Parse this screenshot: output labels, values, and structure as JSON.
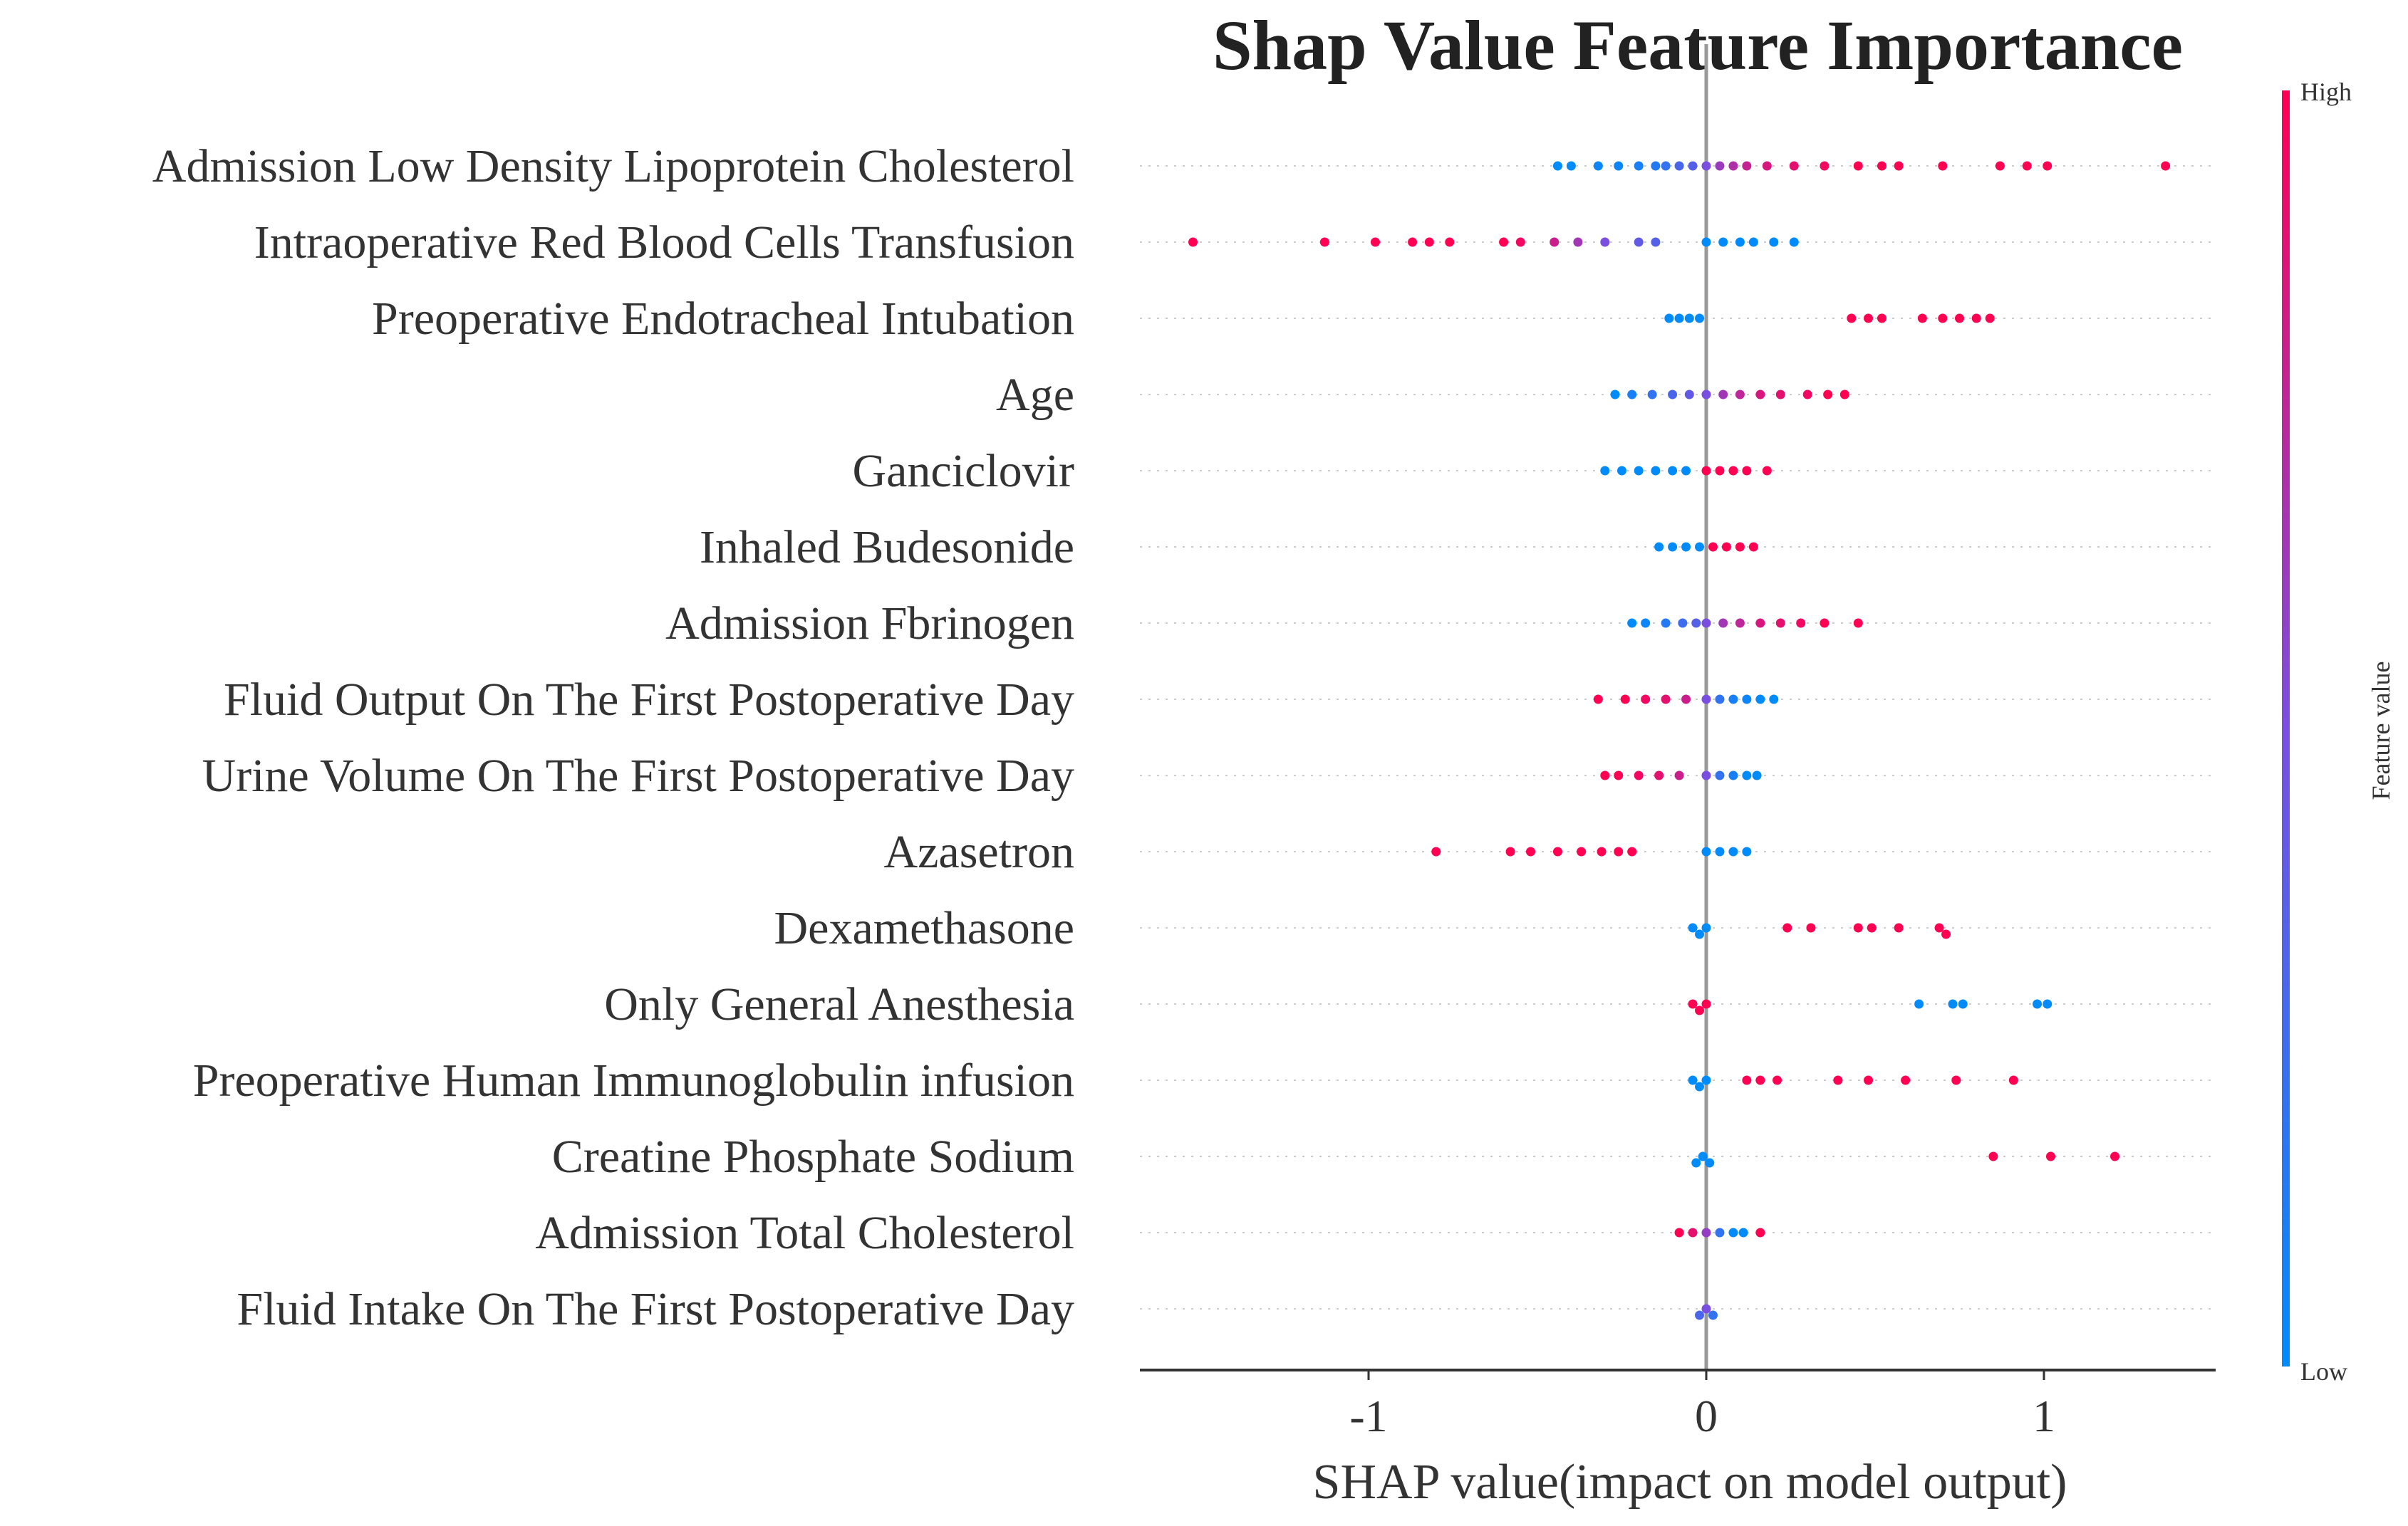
{
  "title": "Shap Value Feature Importance",
  "chart_data": {
    "type": "scatter",
    "subtype": "shap-beeswarm",
    "title": "Shap Value Feature Importance",
    "xlabel": "SHAP value(impact on model output)",
    "xlim": [
      -1.68,
      1.5
    ],
    "xticks": [
      -1,
      0,
      1
    ],
    "xtick_labels": [
      "-1",
      "0",
      "1"
    ],
    "grid": false,
    "colorbar": {
      "label": "Feature value",
      "high_label": "High",
      "low_label": "Low",
      "high_color": "#ff0052",
      "low_color": "#008bfb"
    },
    "features": [
      {
        "name": "Admission Low Density Lipoprotein Cholesterol",
        "points": [
          {
            "x": -0.44,
            "v": 0.0
          },
          {
            "x": -0.4,
            "v": 0.0
          },
          {
            "x": -0.32,
            "v": 0.05
          },
          {
            "x": -0.26,
            "v": 0.05
          },
          {
            "x": -0.2,
            "v": 0.1
          },
          {
            "x": -0.15,
            "v": 0.15
          },
          {
            "x": -0.12,
            "v": 0.2
          },
          {
            "x": -0.08,
            "v": 0.3
          },
          {
            "x": -0.04,
            "v": 0.35
          },
          {
            "x": 0.0,
            "v": 0.5
          },
          {
            "x": 0.04,
            "v": 0.62
          },
          {
            "x": 0.08,
            "v": 0.7
          },
          {
            "x": 0.12,
            "v": 0.78
          },
          {
            "x": 0.18,
            "v": 0.85
          },
          {
            "x": 0.26,
            "v": 0.9
          },
          {
            "x": 0.35,
            "v": 0.95
          },
          {
            "x": 0.45,
            "v": 1.0
          },
          {
            "x": 0.52,
            "v": 1.0
          },
          {
            "x": 0.57,
            "v": 1.0
          },
          {
            "x": 0.7,
            "v": 1.0
          },
          {
            "x": 0.87,
            "v": 1.0
          },
          {
            "x": 0.95,
            "v": 1.0
          },
          {
            "x": 1.01,
            "v": 1.0
          },
          {
            "x": 1.36,
            "v": 1.0
          }
        ]
      },
      {
        "name": "Intraoperative Red Blood Cells Transfusion",
        "points": [
          {
            "x": -1.52,
            "v": 1.0
          },
          {
            "x": -1.13,
            "v": 1.0
          },
          {
            "x": -0.98,
            "v": 1.0
          },
          {
            "x": -0.87,
            "v": 1.0
          },
          {
            "x": -0.82,
            "v": 1.0
          },
          {
            "x": -0.76,
            "v": 1.0
          },
          {
            "x": -0.6,
            "v": 1.0
          },
          {
            "x": -0.55,
            "v": 0.95
          },
          {
            "x": -0.45,
            "v": 0.8
          },
          {
            "x": -0.38,
            "v": 0.65
          },
          {
            "x": -0.3,
            "v": 0.5
          },
          {
            "x": -0.2,
            "v": 0.4
          },
          {
            "x": -0.15,
            "v": 0.35
          },
          {
            "x": 0.0,
            "v": 0.0
          },
          {
            "x": 0.05,
            "v": 0.0
          },
          {
            "x": 0.1,
            "v": 0.0
          },
          {
            "x": 0.14,
            "v": 0.0
          },
          {
            "x": 0.2,
            "v": 0.0
          },
          {
            "x": 0.26,
            "v": 0.0
          }
        ]
      },
      {
        "name": "Preoperative Endotracheal Intubation",
        "points": [
          {
            "x": -0.11,
            "v": 0.0
          },
          {
            "x": -0.08,
            "v": 0.0
          },
          {
            "x": -0.05,
            "v": 0.0
          },
          {
            "x": -0.02,
            "v": 0.0
          },
          {
            "x": 0.43,
            "v": 1.0
          },
          {
            "x": 0.48,
            "v": 1.0
          },
          {
            "x": 0.52,
            "v": 1.0
          },
          {
            "x": 0.64,
            "v": 1.0
          },
          {
            "x": 0.7,
            "v": 1.0
          },
          {
            "x": 0.75,
            "v": 1.0
          },
          {
            "x": 0.8,
            "v": 1.0
          },
          {
            "x": 0.84,
            "v": 1.0
          }
        ]
      },
      {
        "name": "Age",
        "points": [
          {
            "x": -0.27,
            "v": 0.0
          },
          {
            "x": -0.22,
            "v": 0.1
          },
          {
            "x": -0.16,
            "v": 0.2
          },
          {
            "x": -0.1,
            "v": 0.3
          },
          {
            "x": -0.05,
            "v": 0.4
          },
          {
            "x": 0.0,
            "v": 0.5
          },
          {
            "x": 0.05,
            "v": 0.65
          },
          {
            "x": 0.1,
            "v": 0.75
          },
          {
            "x": 0.16,
            "v": 0.85
          },
          {
            "x": 0.22,
            "v": 0.9
          },
          {
            "x": 0.3,
            "v": 0.95
          },
          {
            "x": 0.36,
            "v": 1.0
          },
          {
            "x": 0.41,
            "v": 1.0
          }
        ]
      },
      {
        "name": "Ganciclovir",
        "points": [
          {
            "x": -0.3,
            "v": 0.0
          },
          {
            "x": -0.25,
            "v": 0.0
          },
          {
            "x": -0.2,
            "v": 0.0
          },
          {
            "x": -0.15,
            "v": 0.0
          },
          {
            "x": -0.1,
            "v": 0.0
          },
          {
            "x": -0.06,
            "v": 0.0
          },
          {
            "x": 0.0,
            "v": 1.0
          },
          {
            "x": 0.04,
            "v": 1.0
          },
          {
            "x": 0.08,
            "v": 1.0
          },
          {
            "x": 0.12,
            "v": 1.0
          },
          {
            "x": 0.18,
            "v": 1.0
          }
        ]
      },
      {
        "name": "Inhaled Budesonide",
        "points": [
          {
            "x": -0.14,
            "v": 0.0
          },
          {
            "x": -0.1,
            "v": 0.0
          },
          {
            "x": -0.06,
            "v": 0.0
          },
          {
            "x": -0.02,
            "v": 0.0
          },
          {
            "x": 0.02,
            "v": 1.0
          },
          {
            "x": 0.06,
            "v": 1.0
          },
          {
            "x": 0.1,
            "v": 1.0
          },
          {
            "x": 0.14,
            "v": 1.0
          }
        ]
      },
      {
        "name": "Admission Fbrinogen",
        "points": [
          {
            "x": -0.22,
            "v": 0.0
          },
          {
            "x": -0.18,
            "v": 0.05
          },
          {
            "x": -0.12,
            "v": 0.15
          },
          {
            "x": -0.07,
            "v": 0.25
          },
          {
            "x": -0.03,
            "v": 0.35
          },
          {
            "x": 0.0,
            "v": 0.5
          },
          {
            "x": 0.05,
            "v": 0.65
          },
          {
            "x": 0.1,
            "v": 0.75
          },
          {
            "x": 0.16,
            "v": 0.85
          },
          {
            "x": 0.22,
            "v": 0.9
          },
          {
            "x": 0.28,
            "v": 0.95
          },
          {
            "x": 0.35,
            "v": 1.0
          },
          {
            "x": 0.45,
            "v": 1.0
          }
        ]
      },
      {
        "name": "Fluid Output On The First Postoperative Day",
        "points": [
          {
            "x": -0.32,
            "v": 1.0
          },
          {
            "x": -0.24,
            "v": 1.0
          },
          {
            "x": -0.18,
            "v": 0.95
          },
          {
            "x": -0.12,
            "v": 0.9
          },
          {
            "x": -0.06,
            "v": 0.8
          },
          {
            "x": 0.0,
            "v": 0.5
          },
          {
            "x": 0.04,
            "v": 0.2
          },
          {
            "x": 0.08,
            "v": 0.1
          },
          {
            "x": 0.12,
            "v": 0.05
          },
          {
            "x": 0.16,
            "v": 0.0
          },
          {
            "x": 0.2,
            "v": 0.0
          }
        ]
      },
      {
        "name": "Urine Volume On The First Postoperative Day",
        "points": [
          {
            "x": -0.3,
            "v": 1.0
          },
          {
            "x": -0.26,
            "v": 1.0
          },
          {
            "x": -0.2,
            "v": 0.95
          },
          {
            "x": -0.14,
            "v": 0.9
          },
          {
            "x": -0.08,
            "v": 0.8
          },
          {
            "x": 0.0,
            "v": 0.5
          },
          {
            "x": 0.04,
            "v": 0.2
          },
          {
            "x": 0.08,
            "v": 0.1
          },
          {
            "x": 0.12,
            "v": 0.0
          },
          {
            "x": 0.15,
            "v": 0.0
          }
        ]
      },
      {
        "name": "Azasetron",
        "points": [
          {
            "x": -0.8,
            "v": 1.0
          },
          {
            "x": -0.58,
            "v": 1.0
          },
          {
            "x": -0.52,
            "v": 1.0
          },
          {
            "x": -0.44,
            "v": 1.0
          },
          {
            "x": -0.37,
            "v": 1.0
          },
          {
            "x": -0.31,
            "v": 1.0
          },
          {
            "x": -0.26,
            "v": 1.0
          },
          {
            "x": -0.22,
            "v": 1.0
          },
          {
            "x": 0.0,
            "v": 0.0
          },
          {
            "x": 0.04,
            "v": 0.0
          },
          {
            "x": 0.08,
            "v": 0.0
          },
          {
            "x": 0.12,
            "v": 0.0
          }
        ]
      },
      {
        "name": "Dexamethasone",
        "points": [
          {
            "x": -0.04,
            "v": 0.0
          },
          {
            "x": -0.02,
            "v": 0.0
          },
          {
            "x": 0.0,
            "v": 0.0
          },
          {
            "x": 0.24,
            "v": 1.0
          },
          {
            "x": 0.31,
            "v": 1.0
          },
          {
            "x": 0.45,
            "v": 1.0
          },
          {
            "x": 0.49,
            "v": 1.0
          },
          {
            "x": 0.57,
            "v": 1.0
          },
          {
            "x": 0.69,
            "v": 1.0
          },
          {
            "x": 0.71,
            "v": 1.0
          }
        ]
      },
      {
        "name": "Only General Anesthesia",
        "points": [
          {
            "x": -0.04,
            "v": 1.0
          },
          {
            "x": -0.02,
            "v": 1.0
          },
          {
            "x": 0.0,
            "v": 1.0
          },
          {
            "x": 0.63,
            "v": 0.0
          },
          {
            "x": 0.73,
            "v": 0.0
          },
          {
            "x": 0.76,
            "v": 0.0
          },
          {
            "x": 0.98,
            "v": 0.0
          },
          {
            "x": 1.01,
            "v": 0.0
          }
        ]
      },
      {
        "name": "Preoperative Human Immunoglobulin infusion",
        "points": [
          {
            "x": -0.04,
            "v": 0.0
          },
          {
            "x": -0.02,
            "v": 0.0
          },
          {
            "x": 0.0,
            "v": 0.0
          },
          {
            "x": 0.12,
            "v": 1.0
          },
          {
            "x": 0.16,
            "v": 1.0
          },
          {
            "x": 0.21,
            "v": 1.0
          },
          {
            "x": 0.39,
            "v": 1.0
          },
          {
            "x": 0.48,
            "v": 1.0
          },
          {
            "x": 0.59,
            "v": 1.0
          },
          {
            "x": 0.74,
            "v": 1.0
          },
          {
            "x": 0.91,
            "v": 1.0
          }
        ]
      },
      {
        "name": "Creatine Phosphate Sodium",
        "points": [
          {
            "x": -0.03,
            "v": 0.0
          },
          {
            "x": -0.01,
            "v": 0.0
          },
          {
            "x": 0.01,
            "v": 0.0
          },
          {
            "x": 0.85,
            "v": 1.0
          },
          {
            "x": 1.02,
            "v": 1.0
          },
          {
            "x": 1.21,
            "v": 1.0
          }
        ]
      },
      {
        "name": "Admission Total Cholesterol",
        "points": [
          {
            "x": -0.08,
            "v": 1.0
          },
          {
            "x": -0.04,
            "v": 0.9
          },
          {
            "x": 0.0,
            "v": 0.6
          },
          {
            "x": 0.04,
            "v": 0.2
          },
          {
            "x": 0.08,
            "v": 0.0
          },
          {
            "x": 0.11,
            "v": 0.0
          },
          {
            "x": 0.16,
            "v": 1.0
          }
        ]
      },
      {
        "name": "Fluid Intake On The First Postoperative Day",
        "points": [
          {
            "x": -0.02,
            "v": 0.3
          },
          {
            "x": 0.0,
            "v": 0.5
          },
          {
            "x": 0.02,
            "v": 0.2
          }
        ]
      }
    ]
  }
}
